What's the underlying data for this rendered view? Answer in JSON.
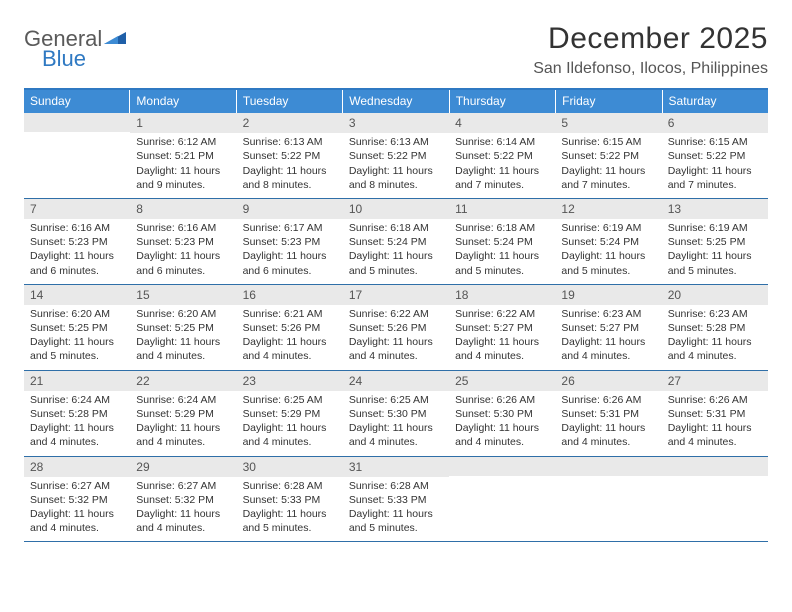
{
  "logo": {
    "word1": "General",
    "word2": "Blue",
    "color_gray": "#5a5a5a",
    "color_blue": "#2f79c2"
  },
  "title": "December 2025",
  "location": "San Ildefonso, Ilocos, Philippines",
  "header_bg": "#3d8bd4",
  "divider_color": "#2f6fa8",
  "dayhead_bg": "#e9e9e9",
  "weekdays": [
    "Sunday",
    "Monday",
    "Tuesday",
    "Wednesday",
    "Thursday",
    "Friday",
    "Saturday"
  ],
  "weeks": [
    [
      {
        "n": "",
        "lines": []
      },
      {
        "n": "1",
        "lines": [
          "Sunrise: 6:12 AM",
          "Sunset: 5:21 PM",
          "Daylight: 11 hours and 9 minutes."
        ]
      },
      {
        "n": "2",
        "lines": [
          "Sunrise: 6:13 AM",
          "Sunset: 5:22 PM",
          "Daylight: 11 hours and 8 minutes."
        ]
      },
      {
        "n": "3",
        "lines": [
          "Sunrise: 6:13 AM",
          "Sunset: 5:22 PM",
          "Daylight: 11 hours and 8 minutes."
        ]
      },
      {
        "n": "4",
        "lines": [
          "Sunrise: 6:14 AM",
          "Sunset: 5:22 PM",
          "Daylight: 11 hours and 7 minutes."
        ]
      },
      {
        "n": "5",
        "lines": [
          "Sunrise: 6:15 AM",
          "Sunset: 5:22 PM",
          "Daylight: 11 hours and 7 minutes."
        ]
      },
      {
        "n": "6",
        "lines": [
          "Sunrise: 6:15 AM",
          "Sunset: 5:22 PM",
          "Daylight: 11 hours and 7 minutes."
        ]
      }
    ],
    [
      {
        "n": "7",
        "lines": [
          "Sunrise: 6:16 AM",
          "Sunset: 5:23 PM",
          "Daylight: 11 hours and 6 minutes."
        ]
      },
      {
        "n": "8",
        "lines": [
          "Sunrise: 6:16 AM",
          "Sunset: 5:23 PM",
          "Daylight: 11 hours and 6 minutes."
        ]
      },
      {
        "n": "9",
        "lines": [
          "Sunrise: 6:17 AM",
          "Sunset: 5:23 PM",
          "Daylight: 11 hours and 6 minutes."
        ]
      },
      {
        "n": "10",
        "lines": [
          "Sunrise: 6:18 AM",
          "Sunset: 5:24 PM",
          "Daylight: 11 hours and 5 minutes."
        ]
      },
      {
        "n": "11",
        "lines": [
          "Sunrise: 6:18 AM",
          "Sunset: 5:24 PM",
          "Daylight: 11 hours and 5 minutes."
        ]
      },
      {
        "n": "12",
        "lines": [
          "Sunrise: 6:19 AM",
          "Sunset: 5:24 PM",
          "Daylight: 11 hours and 5 minutes."
        ]
      },
      {
        "n": "13",
        "lines": [
          "Sunrise: 6:19 AM",
          "Sunset: 5:25 PM",
          "Daylight: 11 hours and 5 minutes."
        ]
      }
    ],
    [
      {
        "n": "14",
        "lines": [
          "Sunrise: 6:20 AM",
          "Sunset: 5:25 PM",
          "Daylight: 11 hours and 5 minutes."
        ]
      },
      {
        "n": "15",
        "lines": [
          "Sunrise: 6:20 AM",
          "Sunset: 5:25 PM",
          "Daylight: 11 hours and 4 minutes."
        ]
      },
      {
        "n": "16",
        "lines": [
          "Sunrise: 6:21 AM",
          "Sunset: 5:26 PM",
          "Daylight: 11 hours and 4 minutes."
        ]
      },
      {
        "n": "17",
        "lines": [
          "Sunrise: 6:22 AM",
          "Sunset: 5:26 PM",
          "Daylight: 11 hours and 4 minutes."
        ]
      },
      {
        "n": "18",
        "lines": [
          "Sunrise: 6:22 AM",
          "Sunset: 5:27 PM",
          "Daylight: 11 hours and 4 minutes."
        ]
      },
      {
        "n": "19",
        "lines": [
          "Sunrise: 6:23 AM",
          "Sunset: 5:27 PM",
          "Daylight: 11 hours and 4 minutes."
        ]
      },
      {
        "n": "20",
        "lines": [
          "Sunrise: 6:23 AM",
          "Sunset: 5:28 PM",
          "Daylight: 11 hours and 4 minutes."
        ]
      }
    ],
    [
      {
        "n": "21",
        "lines": [
          "Sunrise: 6:24 AM",
          "Sunset: 5:28 PM",
          "Daylight: 11 hours and 4 minutes."
        ]
      },
      {
        "n": "22",
        "lines": [
          "Sunrise: 6:24 AM",
          "Sunset: 5:29 PM",
          "Daylight: 11 hours and 4 minutes."
        ]
      },
      {
        "n": "23",
        "lines": [
          "Sunrise: 6:25 AM",
          "Sunset: 5:29 PM",
          "Daylight: 11 hours and 4 minutes."
        ]
      },
      {
        "n": "24",
        "lines": [
          "Sunrise: 6:25 AM",
          "Sunset: 5:30 PM",
          "Daylight: 11 hours and 4 minutes."
        ]
      },
      {
        "n": "25",
        "lines": [
          "Sunrise: 6:26 AM",
          "Sunset: 5:30 PM",
          "Daylight: 11 hours and 4 minutes."
        ]
      },
      {
        "n": "26",
        "lines": [
          "Sunrise: 6:26 AM",
          "Sunset: 5:31 PM",
          "Daylight: 11 hours and 4 minutes."
        ]
      },
      {
        "n": "27",
        "lines": [
          "Sunrise: 6:26 AM",
          "Sunset: 5:31 PM",
          "Daylight: 11 hours and 4 minutes."
        ]
      }
    ],
    [
      {
        "n": "28",
        "lines": [
          "Sunrise: 6:27 AM",
          "Sunset: 5:32 PM",
          "Daylight: 11 hours and 4 minutes."
        ]
      },
      {
        "n": "29",
        "lines": [
          "Sunrise: 6:27 AM",
          "Sunset: 5:32 PM",
          "Daylight: 11 hours and 4 minutes."
        ]
      },
      {
        "n": "30",
        "lines": [
          "Sunrise: 6:28 AM",
          "Sunset: 5:33 PM",
          "Daylight: 11 hours and 5 minutes."
        ]
      },
      {
        "n": "31",
        "lines": [
          "Sunrise: 6:28 AM",
          "Sunset: 5:33 PM",
          "Daylight: 11 hours and 5 minutes."
        ]
      },
      {
        "n": "",
        "lines": []
      },
      {
        "n": "",
        "lines": []
      },
      {
        "n": "",
        "lines": []
      }
    ]
  ]
}
